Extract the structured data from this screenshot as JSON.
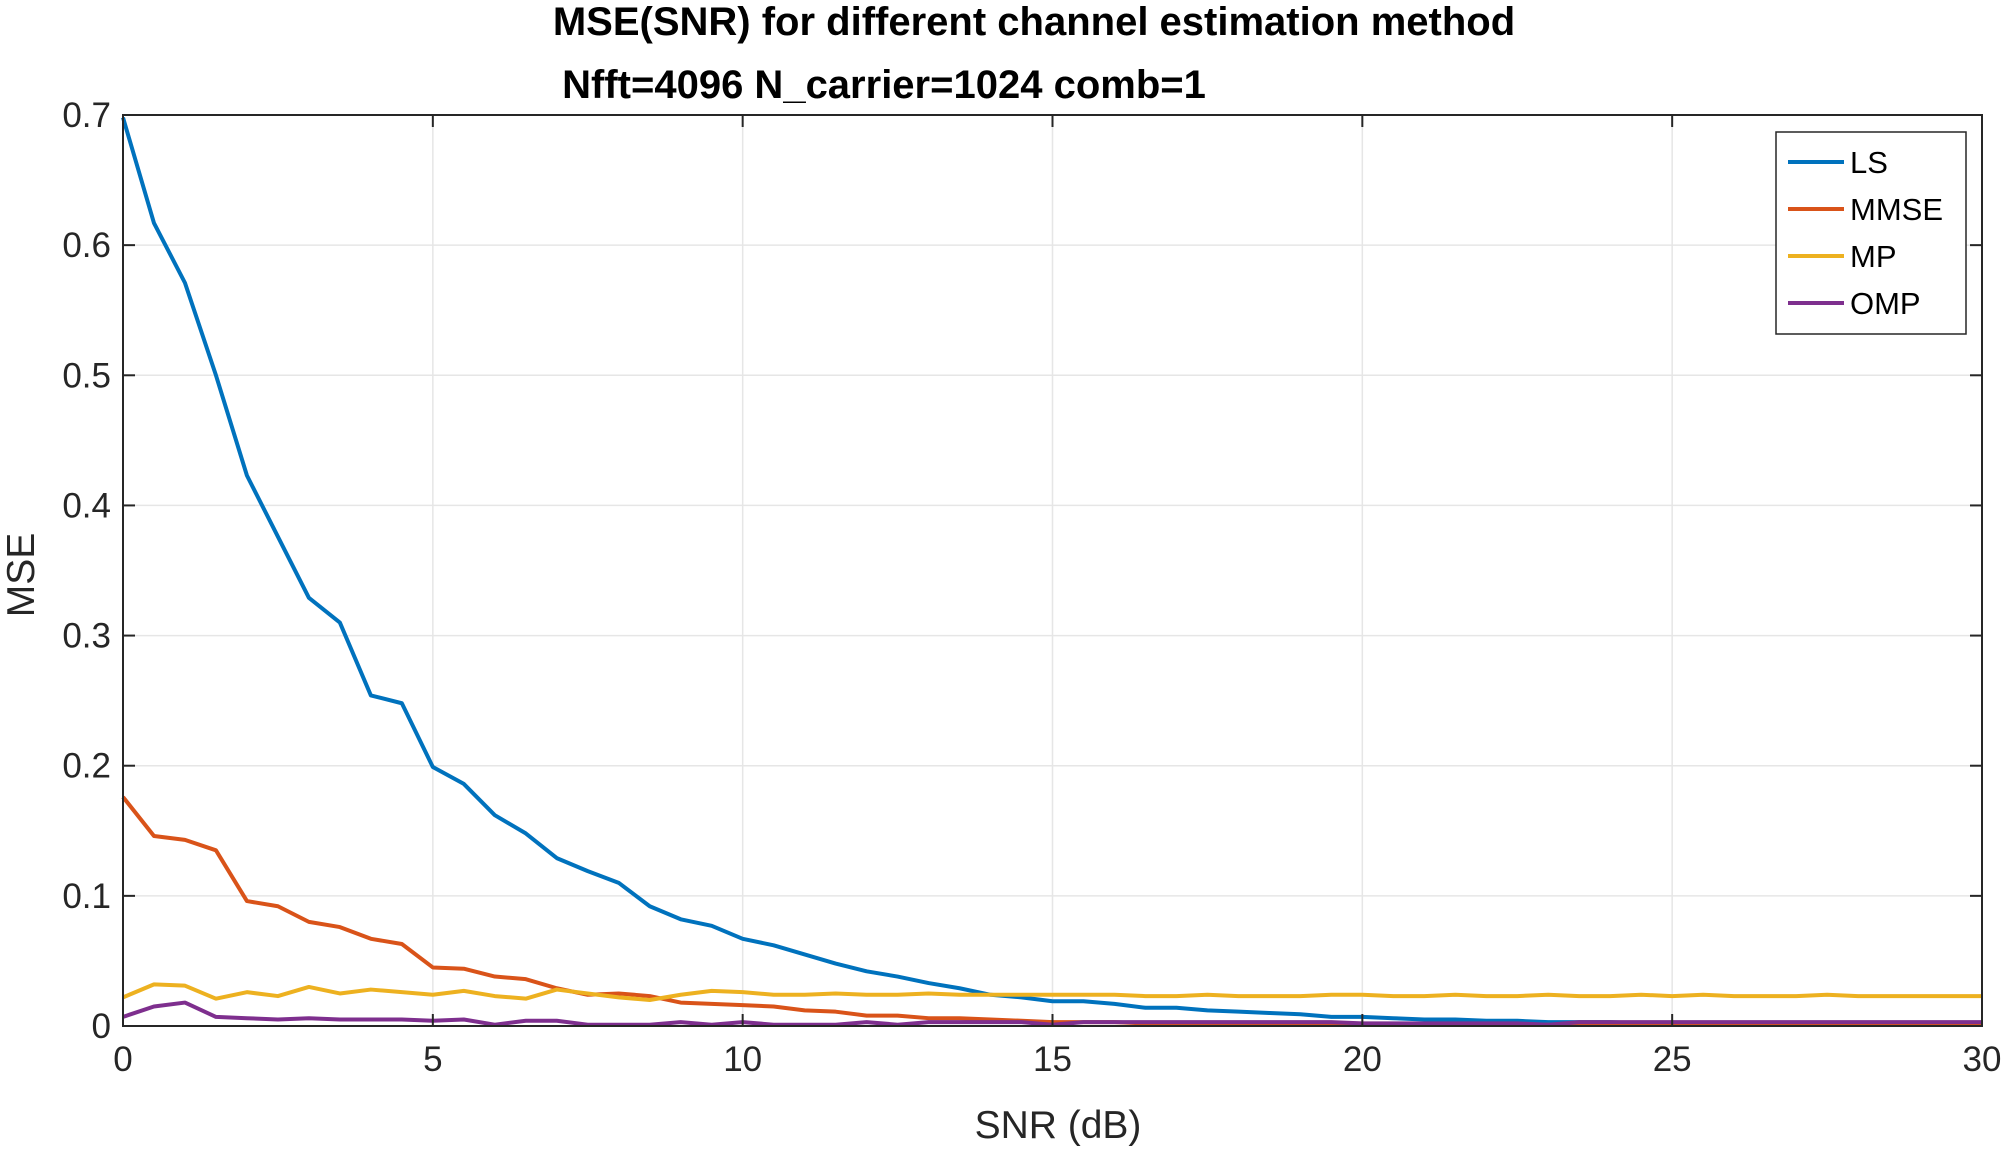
{
  "chart_data": {
    "type": "line",
    "title": "MSE(SNR) for different channel estimation method",
    "subtitle": "Nfft=4096 N_carrier=1024 comb=1",
    "xlabel": "SNR (dB)",
    "ylabel": "MSE",
    "xlim": [
      0,
      30
    ],
    "ylim": [
      0,
      0.7
    ],
    "xticks": [
      0,
      5,
      10,
      15,
      20,
      25,
      30
    ],
    "xtick_labels": [
      "0",
      "5",
      "10",
      "15",
      "20",
      "25",
      "30"
    ],
    "yticks": [
      0,
      0.1,
      0.2,
      0.3,
      0.4,
      0.5,
      0.6,
      0.7
    ],
    "ytick_labels": [
      "0",
      "0.1",
      "0.2",
      "0.3",
      "0.4",
      "0.5",
      "0.6",
      "0.7"
    ],
    "grid": true,
    "legend_position": "top-right",
    "x": [
      0,
      0.5,
      1,
      1.5,
      2,
      2.5,
      3,
      3.5,
      4,
      4.5,
      5,
      5.5,
      6,
      6.5,
      7,
      7.5,
      8,
      8.5,
      9,
      9.5,
      10,
      10.5,
      11,
      11.5,
      12,
      12.5,
      13,
      13.5,
      14,
      14.5,
      15,
      15.5,
      16,
      16.5,
      17,
      17.5,
      18,
      18.5,
      19,
      19.5,
      20,
      20.5,
      21,
      21.5,
      22,
      22.5,
      23,
      23.5,
      24,
      24.5,
      25,
      25.5,
      26,
      26.5,
      27,
      27.5,
      28,
      28.5,
      29,
      29.5,
      30
    ],
    "series": [
      {
        "name": "LS",
        "color": "#0072BD",
        "values": [
          0.698,
          0.617,
          0.571,
          0.5,
          0.423,
          0.376,
          0.329,
          0.31,
          0.254,
          0.248,
          0.199,
          0.186,
          0.162,
          0.148,
          0.129,
          0.119,
          0.11,
          0.092,
          0.082,
          0.077,
          0.067,
          0.062,
          0.055,
          0.048,
          0.042,
          0.038,
          0.033,
          0.029,
          0.024,
          0.022,
          0.019,
          0.019,
          0.017,
          0.014,
          0.014,
          0.012,
          0.011,
          0.01,
          0.009,
          0.007,
          0.007,
          0.006,
          0.005,
          0.005,
          0.004,
          0.004,
          0.003,
          0.003,
          0.003,
          0.002,
          0.002,
          0.002,
          0.002,
          0.002,
          0.002,
          0.002,
          0.002,
          0.002,
          0.002,
          0.002,
          0.002
        ]
      },
      {
        "name": "MMSE",
        "color": "#D95319",
        "values": [
          0.176,
          0.146,
          0.143,
          0.135,
          0.096,
          0.092,
          0.08,
          0.076,
          0.067,
          0.063,
          0.045,
          0.044,
          0.038,
          0.036,
          0.029,
          0.024,
          0.025,
          0.023,
          0.018,
          0.017,
          0.016,
          0.015,
          0.012,
          0.011,
          0.008,
          0.008,
          0.006,
          0.006,
          0.005,
          0.004,
          0.003,
          0.003,
          0.003,
          0.002,
          0.002,
          0.002,
          0.001,
          0.001,
          0.001,
          0.001,
          0.001,
          0.001,
          0.001,
          0.001,
          0.001,
          0.001,
          0.001,
          0.001,
          0.001,
          0.001,
          0.001,
          0.001,
          0.001,
          0.001,
          0.001,
          0.001,
          0.001,
          0.001,
          0.001,
          0.001,
          0.001
        ]
      },
      {
        "name": "MP",
        "color": "#EDB120",
        "values": [
          0.022,
          0.032,
          0.031,
          0.021,
          0.026,
          0.023,
          0.03,
          0.025,
          0.028,
          0.026,
          0.024,
          0.027,
          0.023,
          0.021,
          0.028,
          0.025,
          0.022,
          0.02,
          0.024,
          0.027,
          0.026,
          0.024,
          0.024,
          0.025,
          0.024,
          0.024,
          0.025,
          0.024,
          0.024,
          0.024,
          0.024,
          0.024,
          0.024,
          0.023,
          0.023,
          0.024,
          0.023,
          0.023,
          0.023,
          0.024,
          0.024,
          0.023,
          0.023,
          0.024,
          0.023,
          0.023,
          0.024,
          0.023,
          0.023,
          0.024,
          0.023,
          0.024,
          0.023,
          0.023,
          0.023,
          0.024,
          0.023,
          0.023,
          0.023,
          0.023,
          0.023
        ]
      },
      {
        "name": "OMP",
        "color": "#7E2F8E",
        "values": [
          0.007,
          0.015,
          0.018,
          0.007,
          0.006,
          0.005,
          0.006,
          0.005,
          0.005,
          0.005,
          0.004,
          0.005,
          0.001,
          0.004,
          0.004,
          0.001,
          0.001,
          0.001,
          0.003,
          0.001,
          0.003,
          0.001,
          0.001,
          0.001,
          0.003,
          0.001,
          0.003,
          0.003,
          0.003,
          0.003,
          0.001,
          0.003,
          0.003,
          0.003,
          0.003,
          0.003,
          0.003,
          0.003,
          0.003,
          0.003,
          0.002,
          0.002,
          0.002,
          0.002,
          0.002,
          0.002,
          0.001,
          0.003,
          0.003,
          0.003,
          0.003,
          0.003,
          0.003,
          0.003,
          0.003,
          0.003,
          0.003,
          0.003,
          0.003,
          0.003,
          0.003
        ]
      }
    ]
  }
}
